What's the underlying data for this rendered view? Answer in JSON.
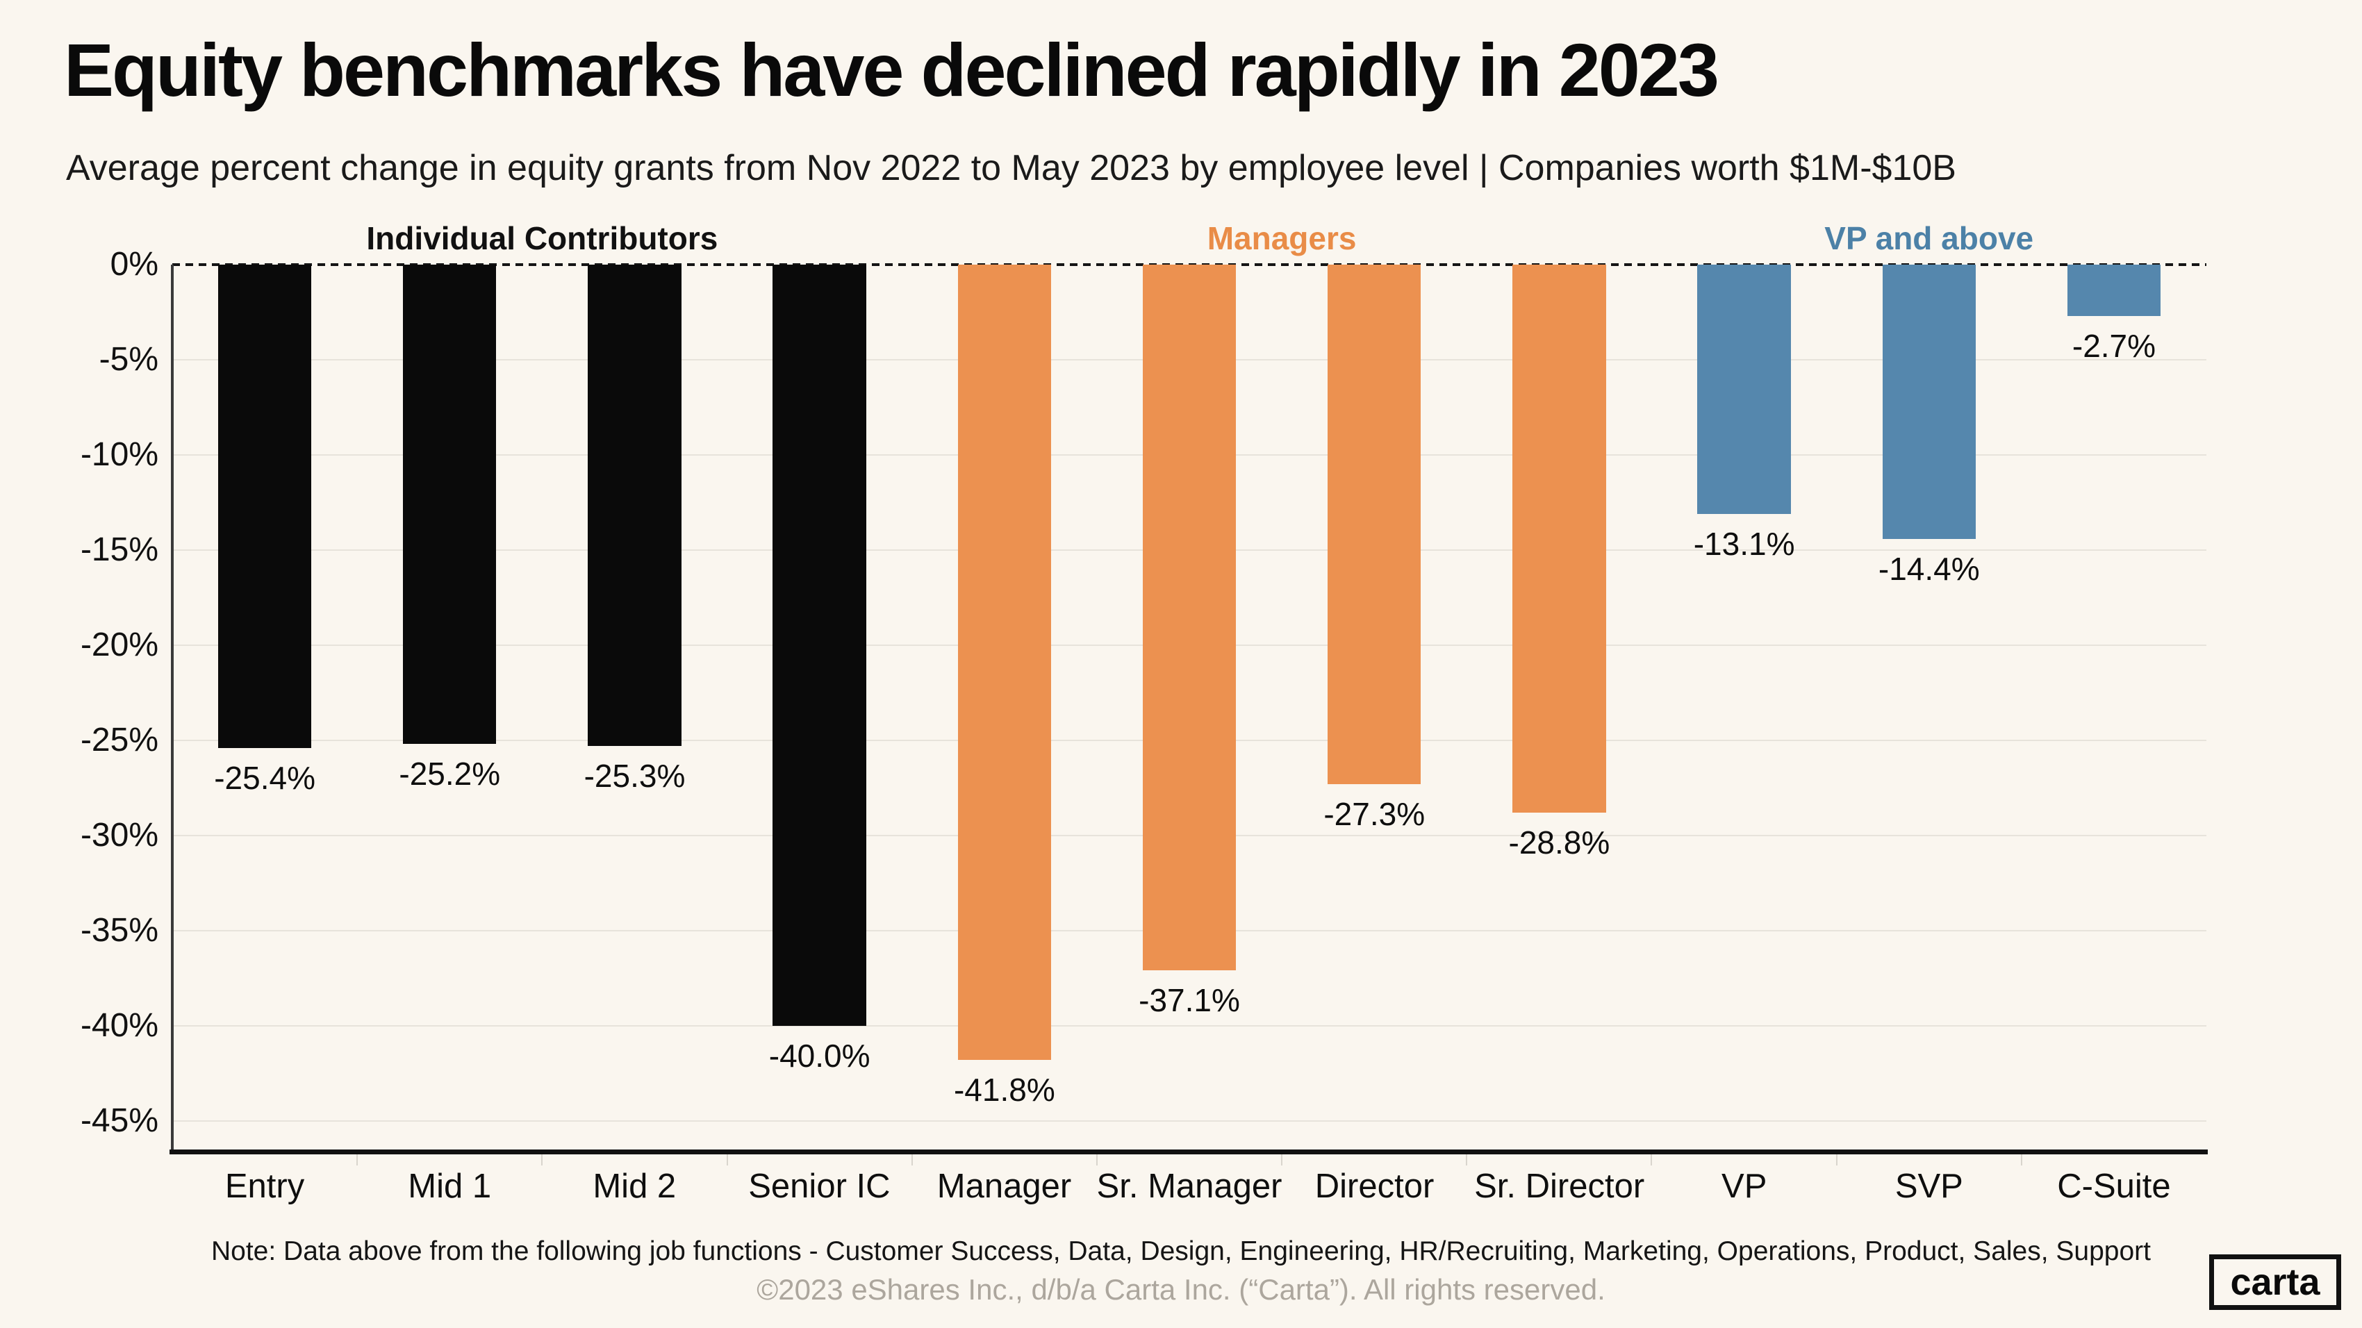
{
  "page": {
    "title": "Equity benchmarks have declined rapidly in 2023",
    "subtitle": "Average percent change in equity grants from Nov 2022 to May 2023 by employee level | Companies worth $1M-$10B",
    "note": "Note: Data above from the following job functions - Customer Success, Data, Design, Engineering, HR/Recruiting, Marketing, Operations, Product, Sales, Support",
    "copyright": "©2023 eShares Inc., d/b/a Carta Inc. (“Carta”). All rights reserved.",
    "logo_text": "carta",
    "background": "#FAF6EF"
  },
  "chart_data": {
    "type": "bar",
    "title": "Equity benchmarks have declined rapidly in 2023",
    "subtitle": "Average percent change in equity grants from Nov 2022 to May 2023 by employee level | Companies worth $1M-$10B",
    "categories": [
      "Entry",
      "Mid 1",
      "Mid 2",
      "Senior IC",
      "Manager",
      "Sr. Manager",
      "Director",
      "Sr. Director",
      "VP",
      "SVP",
      "C-Suite"
    ],
    "values": [
      -25.4,
      -25.2,
      -25.3,
      -40.0,
      -41.8,
      -37.1,
      -27.3,
      -28.8,
      -13.1,
      -14.4,
      -2.7
    ],
    "value_labels": [
      "-25.4%",
      "-25.2%",
      "-25.3%",
      "-40.0%",
      "-41.8%",
      "-37.1%",
      "-27.3%",
      "-28.8%",
      "-13.1%",
      "-14.4%",
      "-2.7%"
    ],
    "groups": [
      {
        "name": "Individual Contributors",
        "color": "#0A0A0A",
        "label_color": "#111111",
        "start": 0,
        "end": 3
      },
      {
        "name": "Managers",
        "color": "#EC9150",
        "label_color": "#E98C47",
        "start": 4,
        "end": 7
      },
      {
        "name": "VP and above",
        "color": "#5587AD",
        "label_color": "#4C81A7",
        "start": 8,
        "end": 10
      }
    ],
    "xlabel": "",
    "ylabel": "",
    "y_ticks": [
      "0%",
      "-5%",
      "-10%",
      "-15%",
      "-20%",
      "-25%",
      "-30%",
      "-35%",
      "-40%",
      "-45%"
    ],
    "y_tick_values": [
      0,
      -5,
      -10,
      -15,
      -20,
      -25,
      -30,
      -35,
      -40,
      -45
    ],
    "ylim": [
      0,
      -46.5
    ],
    "grid": "horizontal",
    "zero_line_style": "dashed",
    "legend_position": "group-labels-above-plot"
  }
}
